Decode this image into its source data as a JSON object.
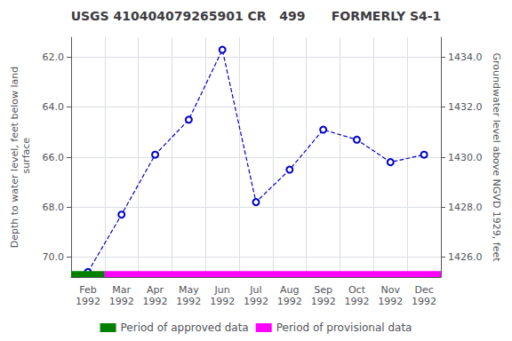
{
  "chart_data": {
    "type": "line",
    "title": "USGS 410404079265901 CR   499      FORMERLY S4-1",
    "ylabel": "Depth to water level, feet below land\n surface",
    "y2label": "Groundwater level above NGVD 1929, feet",
    "categories": [
      "Feb\n1992",
      "Mar\n1992",
      "Apr\n1992",
      "May\n1992",
      "Jun\n1992",
      "Jul\n1992",
      "Aug\n1992",
      "Sep\n1992",
      "Oct\n1992",
      "Nov\n1992",
      "Dec\n1992"
    ],
    "series": [
      {
        "values": [
          70.6,
          68.3,
          65.9,
          64.5,
          61.7,
          67.8,
          66.5,
          64.9,
          65.3,
          66.2,
          65.9
        ],
        "color": "#0000cc",
        "line_style": "dashed",
        "marker": "open circle"
      }
    ],
    "periods": [
      {
        "name": "Period of approved data",
        "color": "#008000",
        "from": "Feb\n1992",
        "to": "Feb\n1992"
      },
      {
        "name": "Period of provisional data",
        "color": "#ff00ff",
        "from": "Mar\n1992",
        "to": "Dec\n1992"
      }
    ],
    "ylim": [
      70.8,
      61.2
    ],
    "yticks": [
      {
        "value": 62.0,
        "label": "62.0"
      },
      {
        "value": 64.0,
        "label": "64.0"
      },
      {
        "value": 66.0,
        "label": "66.0"
      },
      {
        "value": 68.0,
        "label": "68.0"
      },
      {
        "value": 70.0,
        "label": "70.0"
      }
    ],
    "y2lim": [
      1425.2,
      1434.8
    ],
    "y2ticks": [
      {
        "value": 1426.0,
        "label": "1426.0"
      },
      {
        "value": 1428.0,
        "label": "1428.0"
      },
      {
        "value": 1430.0,
        "label": "1430.0"
      },
      {
        "value": 1432.0,
        "label": "1432.0"
      },
      {
        "value": 1434.0,
        "label": "1434.0"
      }
    ],
    "grid": true
  }
}
